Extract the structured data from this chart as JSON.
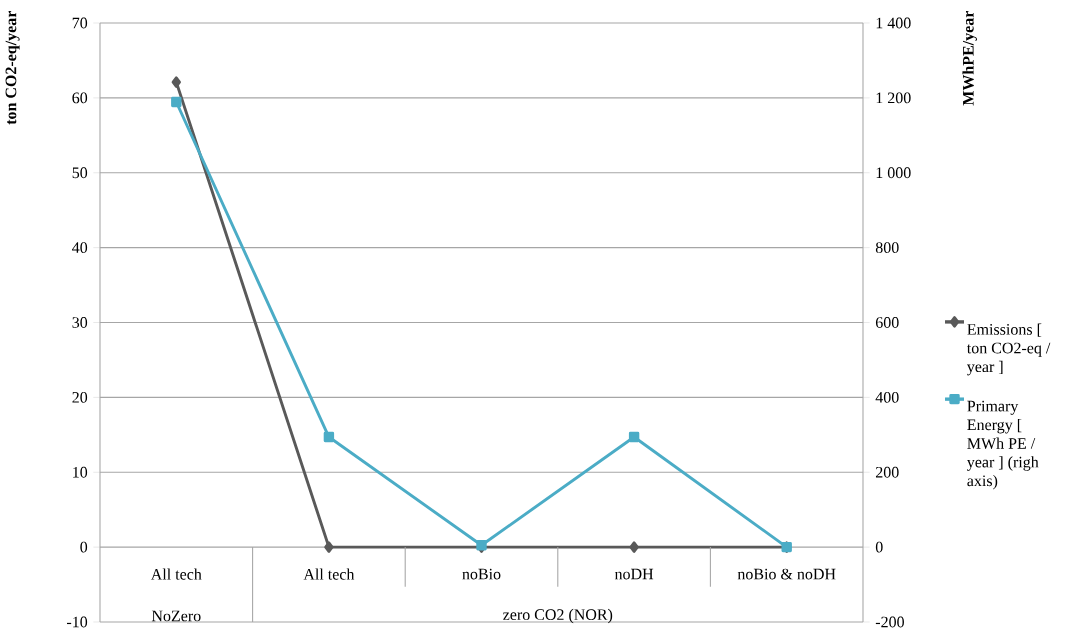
{
  "chart_data": {
    "type": "line",
    "categories": [
      "All tech",
      "All tech",
      "noBio",
      "noDH",
      "noBio & noDH"
    ],
    "ylabel": "ton CO2-eq/year",
    "y2label": "MWhPE/year",
    "ylim": [
      -10,
      70
    ],
    "yticks": [
      -10,
      0,
      10,
      20,
      30,
      40,
      50,
      60,
      70
    ],
    "y2lim": [
      -200,
      1400
    ],
    "y2ticks": [
      -200,
      0,
      200,
      400,
      600,
      800,
      {
        "value": 1000,
        "label": "1 000"
      },
      {
        "value": 1200,
        "label": "1 200"
      },
      {
        "value": 1400,
        "label": "1 400"
      }
    ],
    "grid": "y",
    "legend": "right",
    "line_style": "solid",
    "series": [
      {
        "name": "Emissions [ ton CO2-eq / year ]",
        "color": "#595959",
        "marker": "diamond",
        "values": [
          62.1,
          0,
          0,
          0,
          0
        ]
      },
      {
        "name": "Primary Energy [ MWh PE / year ] (righ axis)",
        "color": "#4bacc6",
        "marker": "square",
        "axis": "y2",
        "values": [
          1189,
          294,
          5,
          294,
          0
        ]
      }
    ],
    "annotations": [
      "NoZero",
      "zero CO2 (NOR)"
    ]
  }
}
